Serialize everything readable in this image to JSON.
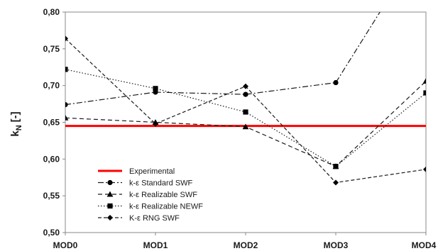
{
  "chart_data": {
    "type": "line",
    "categories": [
      "MOD0",
      "MOD1",
      "MOD2",
      "MOD3",
      "MOD4"
    ],
    "ylabel_main": "k",
    "ylabel_sub": "N",
    "ylabel_unit": "[-]",
    "ylim": [
      0.5,
      0.8
    ],
    "yticks": [
      "0,50",
      "0,55",
      "0,60",
      "0,65",
      "0,70",
      "0,75",
      "0,80"
    ],
    "grid": false,
    "legend_position": "bottom-left",
    "experimental": {
      "name": "Experimental",
      "value": 0.645,
      "color": "#ff0000"
    },
    "series": [
      {
        "name": "k-ε Standard SWF",
        "marker": "circle",
        "dash": "8,3,2,3",
        "values": [
          0.674,
          0.691,
          0.688,
          0.704,
          0.9
        ]
      },
      {
        "name": "k-ε Realizable SWF",
        "marker": "triangle",
        "dash": "6,4",
        "values": [
          0.656,
          0.65,
          0.644,
          0.59,
          0.706
        ]
      },
      {
        "name": "k-ε Realizable NEWF",
        "marker": "square",
        "dash": "1.5,2.5",
        "values": [
          0.722,
          0.696,
          0.664,
          0.59,
          0.69
        ]
      },
      {
        "name": "K-ε RNG SWF",
        "marker": "diamond",
        "dash": "5,3",
        "values": [
          0.764,
          0.648,
          0.699,
          0.568,
          0.586
        ]
      }
    ]
  }
}
